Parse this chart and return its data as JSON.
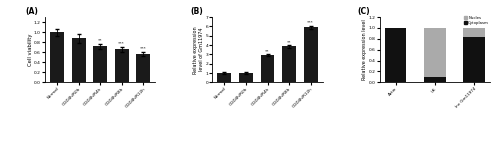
{
  "panel_A": {
    "label": "(A)",
    "categories": [
      "Normal",
      "OGD4h/R0h",
      "OGD4h/R4h",
      "OGD4h/R8h",
      "OGD4h/R12h"
    ],
    "values": [
      1.0,
      0.88,
      0.72,
      0.66,
      0.57
    ],
    "errors": [
      0.07,
      0.09,
      0.05,
      0.05,
      0.04
    ],
    "ylabel": "Cell viability",
    "ylim": [
      0,
      1.3
    ],
    "yticks": [
      0.0,
      0.2,
      0.4,
      0.6,
      0.8,
      1.0,
      1.2
    ],
    "significance": [
      "",
      "",
      "**",
      "***",
      "***"
    ],
    "bar_color": "#1a1a1a"
  },
  "panel_B": {
    "label": "(B)",
    "categories": [
      "Normal",
      "OGD4h/R0h",
      "OGD4h/R4h",
      "OGD4h/R8h",
      "OGD4h/R12h"
    ],
    "values": [
      1.0,
      1.0,
      2.9,
      3.85,
      5.9
    ],
    "errors": [
      0.1,
      0.08,
      0.12,
      0.15,
      0.18
    ],
    "ylabel": "Relative expression\nlevel of Gm11974",
    "ylim": [
      0,
      7
    ],
    "yticks": [
      0,
      1,
      2,
      3,
      4,
      5,
      6,
      7
    ],
    "significance": [
      "",
      "",
      "**",
      "**",
      "***"
    ],
    "bar_color": "#1a1a1a"
  },
  "panel_C": {
    "label": "(C)",
    "categories": [
      "Actin",
      "U6",
      "lnc Gm11974"
    ],
    "nucleus_values": [
      0.0,
      0.9,
      0.16
    ],
    "cytoplasm_values": [
      1.0,
      0.1,
      0.84
    ],
    "ylabel": "Relative expression level",
    "ylim": [
      0,
      1.2
    ],
    "yticks": [
      0.0,
      0.2,
      0.4,
      0.6,
      0.8,
      1.0,
      1.2
    ],
    "nucleus_color": "#aaaaaa",
    "cytoplasm_color": "#111111",
    "legend_labels": [
      "Nucles",
      "Cytoplasm"
    ]
  }
}
